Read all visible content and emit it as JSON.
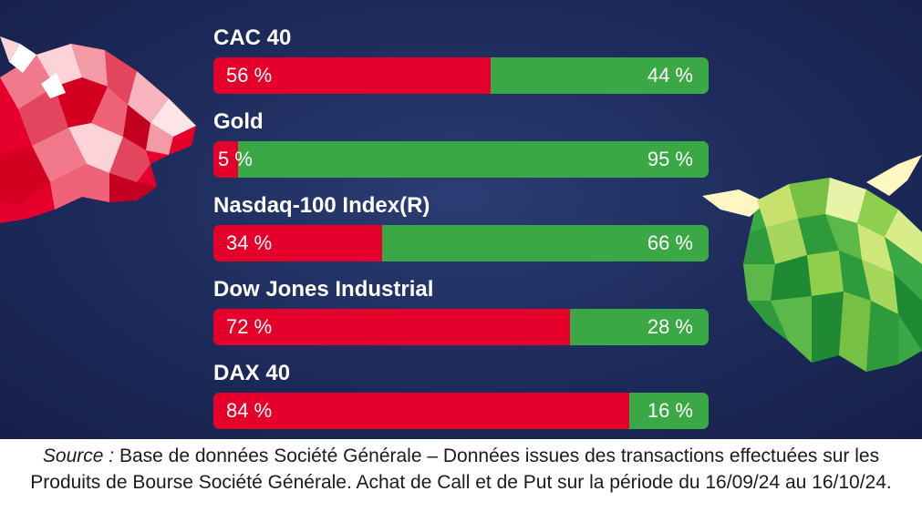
{
  "chart_data": {
    "type": "bar",
    "orientation": "horizontal",
    "stacked": true,
    "unit": "%",
    "categories": [
      "CAC 40",
      "Gold",
      "Nasdaq-100 Index(R)",
      "Dow Jones Industrial",
      "DAX 40"
    ],
    "series": [
      {
        "values": [
          56,
          5,
          34,
          72,
          84
        ],
        "labels": [
          "56 %",
          "5 %",
          "34 %",
          "72 %",
          "84 %"
        ],
        "color": "#e4002b"
      },
      {
        "values": [
          44,
          95,
          66,
          28,
          16
        ],
        "labels": [
          "44 %",
          "95 %",
          "66 %",
          "28 %",
          "16 %"
        ],
        "color": "#3aa845"
      }
    ],
    "xlim": [
      0,
      100
    ],
    "grid": false,
    "legend": "none"
  },
  "source": {
    "lead": "Source :",
    "line1": " Base de données Société Générale – Données issues des transactions effectuées sur les",
    "line2": "Produits de Bourse Société Générale. Achat de Call et de Put sur la période du 16/09/24 au 16/10/24."
  },
  "colors": {
    "background": "#1d2a5a",
    "put": "#e4002b",
    "call": "#3aa845"
  },
  "illustrations": {
    "left": "bear-icon",
    "right": "bull-icon"
  }
}
